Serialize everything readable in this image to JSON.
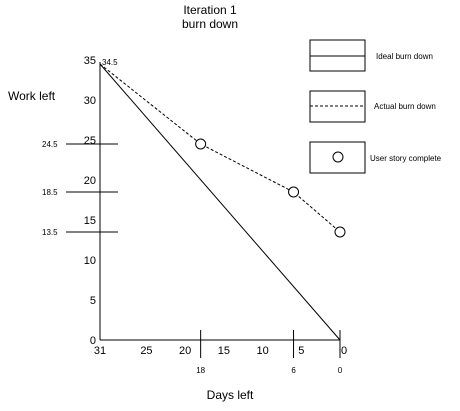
{
  "chart_data": {
    "type": "line",
    "title_line1": "Iteration 1",
    "title_line2": "burn down",
    "xlabel": "Days left",
    "ylabel": "Work left",
    "xlim": [
      31,
      0
    ],
    "ylim": [
      0,
      35
    ],
    "x_ticks": [
      "31",
      "25",
      "20",
      "15",
      "10",
      "5",
      "0"
    ],
    "x_tick_values": [
      31,
      25,
      20,
      15,
      10,
      5,
      0
    ],
    "y_ticks": [
      "0",
      "5",
      "10",
      "15",
      "20",
      "25",
      "30",
      "35"
    ],
    "y_tick_values": [
      0,
      5,
      10,
      15,
      20,
      25,
      30,
      35
    ],
    "series": [
      {
        "name": "Ideal burn down",
        "style": "solid",
        "points": [
          [
            31,
            34.5
          ],
          [
            0,
            0
          ]
        ]
      },
      {
        "name": "Actual burn down",
        "style": "dashed",
        "points": [
          [
            31,
            34.5
          ],
          [
            18,
            24.5
          ],
          [
            6,
            18.5
          ],
          [
            0,
            13.5
          ]
        ]
      }
    ],
    "story_complete_points": [
      [
        18,
        24.5
      ],
      [
        6,
        18.5
      ],
      [
        0,
        13.5
      ]
    ],
    "story_complete_label": "User story complete",
    "start_label": "34.5",
    "marker_y": [
      {
        "label": "24.5",
        "value": 24.5
      },
      {
        "label": "18.5",
        "value": 18.5
      },
      {
        "label": "13.5",
        "value": 13.5
      }
    ],
    "marker_x": [
      {
        "label": "18",
        "value": 18
      },
      {
        "label": "6",
        "value": 6
      },
      {
        "label": "0",
        "value": 0
      }
    ],
    "legend_position": "top-right",
    "grid": false
  }
}
